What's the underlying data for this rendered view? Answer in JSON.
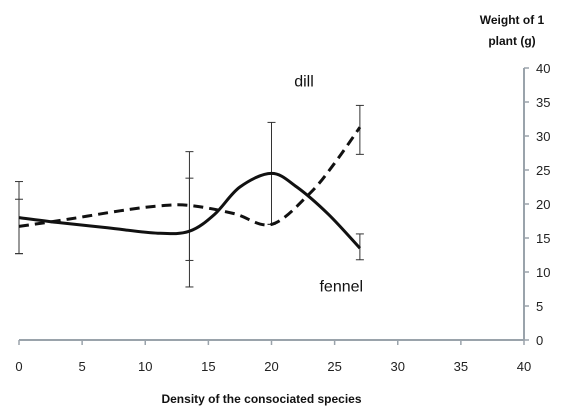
{
  "chart_data": {
    "type": "line",
    "xlabel": "Density of the consociated  species",
    "ylabel_lines": [
      "Weight of 1",
      "plant (g)"
    ],
    "xlim": [
      0,
      40
    ],
    "ylim": [
      0,
      40
    ],
    "x_ticks": [
      0,
      5,
      10,
      15,
      20,
      25,
      30,
      35,
      40
    ],
    "y_ticks": [
      0,
      5,
      10,
      15,
      20,
      25,
      30,
      35,
      40
    ],
    "y_axis_position": "right",
    "grid": false,
    "legend": "none",
    "series": [
      {
        "name": "dill",
        "style": "dashed",
        "color": "#111111",
        "x": [
          0,
          4,
          8,
          11,
          13.5,
          17,
          20,
          23,
          25,
          27
        ],
        "y": [
          16.7,
          17.8,
          19.0,
          19.7,
          19.8,
          18.6,
          17.0,
          21.5,
          26.0,
          31.3
        ],
        "error_bars": [
          {
            "x": 0,
            "low": 12.7,
            "high": 20.7
          },
          {
            "x": 13.5,
            "low": 11.7,
            "high": 27.7
          },
          {
            "x": 20,
            "low": 17.0,
            "high": 17.0
          },
          {
            "x": 27,
            "low": 27.3,
            "high": 34.5
          }
        ]
      },
      {
        "name": "fennel",
        "style": "solid",
        "color": "#111111",
        "x": [
          0,
          3,
          7,
          11,
          13.5,
          15.5,
          17.5,
          20,
          22,
          24.5,
          27
        ],
        "y": [
          18.0,
          17.3,
          16.5,
          15.7,
          16.0,
          18.5,
          22.5,
          24.5,
          22.5,
          18.5,
          13.5
        ],
        "error_bars": [
          {
            "x": 0,
            "low": 12.7,
            "high": 23.3
          },
          {
            "x": 13.5,
            "low": 7.8,
            "high": 23.8
          },
          {
            "x": 20,
            "low": 17.0,
            "high": 32.0
          },
          {
            "x": 27,
            "low": 11.8,
            "high": 15.6
          }
        ]
      }
    ],
    "annotations": [
      {
        "text": "dill",
        "x": 21.8,
        "y": 37.3
      },
      {
        "text": "fennel",
        "x": 23.8,
        "y": 7.1
      }
    ]
  }
}
